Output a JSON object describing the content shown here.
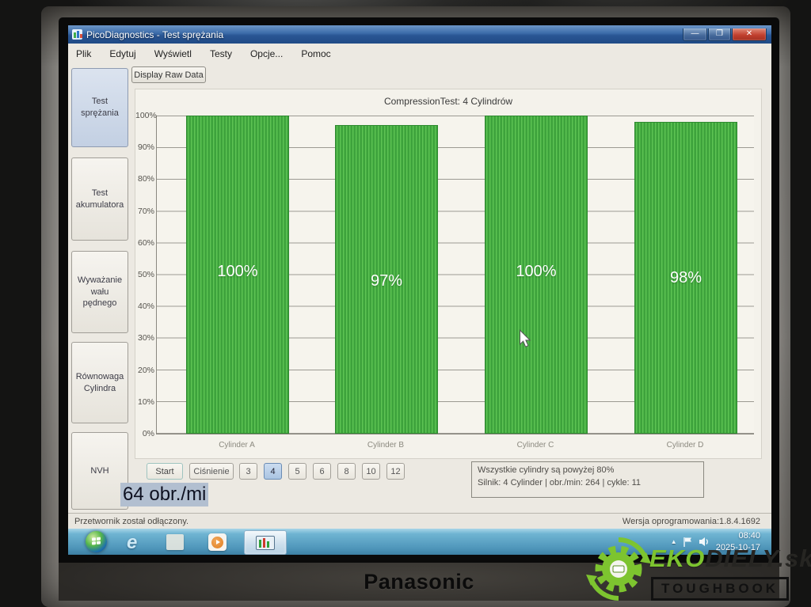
{
  "window": {
    "title": "PicoDiagnostics - Test sprężania"
  },
  "window_controls": {
    "minimize": "—",
    "maximize": "❐",
    "close": "✕"
  },
  "menu": {
    "items": [
      "Plik",
      "Edytuj",
      "Wyświetl",
      "Testy",
      "Opcje...",
      "Pomoc"
    ]
  },
  "toolbar": {
    "display_raw_data_label": "Display Raw Data"
  },
  "sidebar": {
    "items": [
      {
        "label": "Test sprężania",
        "selected": true
      },
      {
        "label": "Test akumulatora",
        "selected": false
      },
      {
        "label": "Wyważanie wału pędnego",
        "selected": false
      },
      {
        "label": "Równowaga Cylindra",
        "selected": false
      },
      {
        "label": "NVH",
        "selected": false
      }
    ]
  },
  "chart_data": {
    "type": "bar",
    "title": "CompressionTest: 4 Cylindrów",
    "categories": [
      "Cylinder A",
      "Cylinder B",
      "Cylinder C",
      "Cylinder D"
    ],
    "values": [
      100,
      97,
      100,
      98
    ],
    "bar_labels": [
      "100%",
      "97%",
      "100%",
      "98%"
    ],
    "ytick_labels": [
      "100%",
      "90%",
      "80%",
      "70%",
      "60%",
      "50%",
      "40%",
      "30%",
      "20%",
      "10%",
      "0%"
    ],
    "ylim": [
      0,
      100
    ],
    "grid": true,
    "bar_color": "#46ac42",
    "legend_position": "none"
  },
  "controls": {
    "start_label": "Start",
    "pressure_label": "Ciśnienie",
    "cylinder_options": [
      "3",
      "4",
      "5",
      "6",
      "8",
      "10",
      "12"
    ],
    "selected_cylinder": "4",
    "rpm_display": "64 obr./mi"
  },
  "results_box": {
    "line1": "Wszystkie cylindry są powyżej 80%",
    "line2": "Silnik: 4 Cylinder | obr./min: 264 | cykle: 11"
  },
  "statusbar": {
    "left": "Przetwornik został odłączony.",
    "right": "Wersja oprogramowania:1.8.4.1692"
  },
  "taskbar": {
    "time": "08:40",
    "date": "2025-10-17"
  },
  "branding": {
    "laptop_brand": "Panasonic",
    "sticker_green": "EKO",
    "sticker_dark": "DIELY",
    "sticker_suffix": ".sk",
    "sticker_badge": "TOUGHBOOK"
  }
}
